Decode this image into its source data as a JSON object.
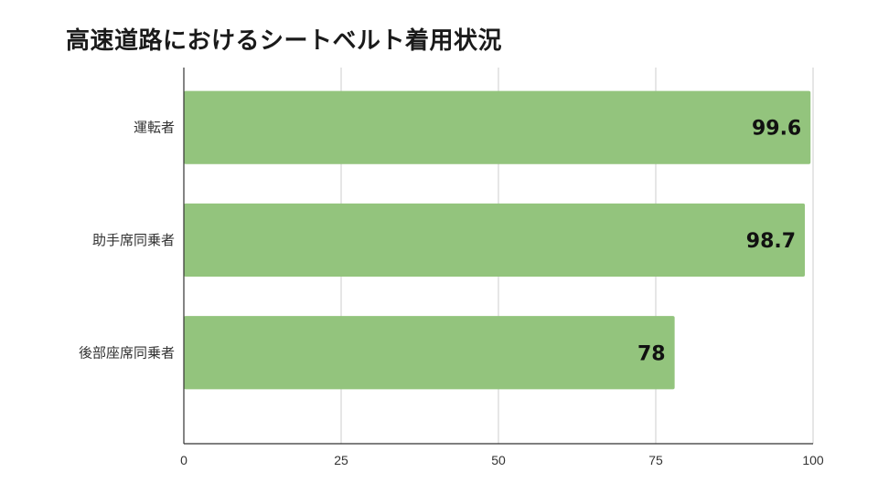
{
  "chart_data": {
    "type": "bar",
    "orientation": "horizontal",
    "title": "高速道路におけるシートベルト着用状況",
    "categories": [
      "運転者",
      "助手席同乗者",
      "後部座席同乗者"
    ],
    "values": [
      99.6,
      98.7,
      78
    ],
    "data_labels": [
      "99.6",
      "98.7",
      "78"
    ],
    "xlim": [
      0,
      100
    ],
    "xticks": [
      0,
      25,
      50,
      75,
      100
    ],
    "xtick_labels": [
      "0",
      "25",
      "50",
      "75",
      "100"
    ],
    "grid": true,
    "legend": "none",
    "bar_color": "#93c47d"
  }
}
